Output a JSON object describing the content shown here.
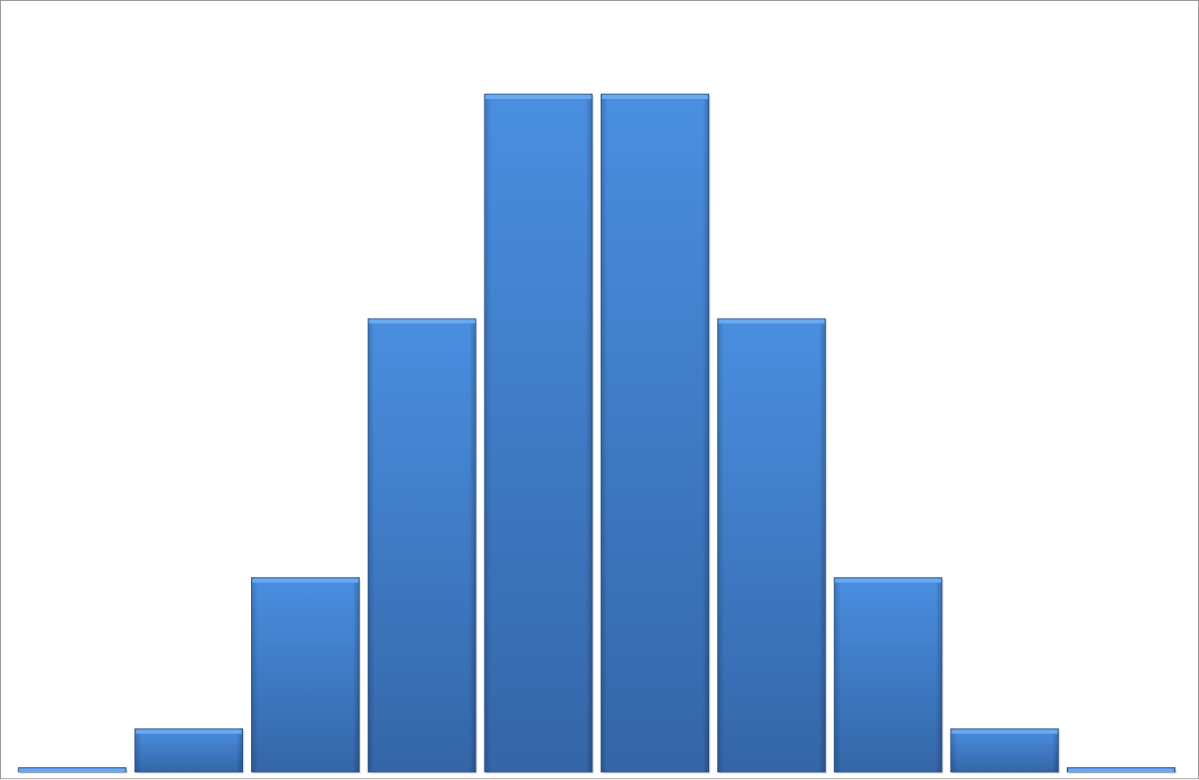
{
  "chart_data": {
    "type": "bar",
    "categories": [
      "",
      "",
      "",
      "",
      "",
      "",
      "",
      "",
      "",
      ""
    ],
    "values": [
      1,
      10,
      45,
      105,
      157,
      157,
      105,
      45,
      10,
      1
    ],
    "title": "",
    "xlabel": "",
    "ylabel": "",
    "ylim": [
      0,
      157
    ],
    "grid": false,
    "legend": "none",
    "colors": {
      "bar_top": "#4a8fe0",
      "bar_bottom": "#3466a8",
      "bar_cap": "#6aa8f0",
      "bar_edge": "#2a558e",
      "frame": "#8c8c8c",
      "background": "#ffffff"
    }
  }
}
